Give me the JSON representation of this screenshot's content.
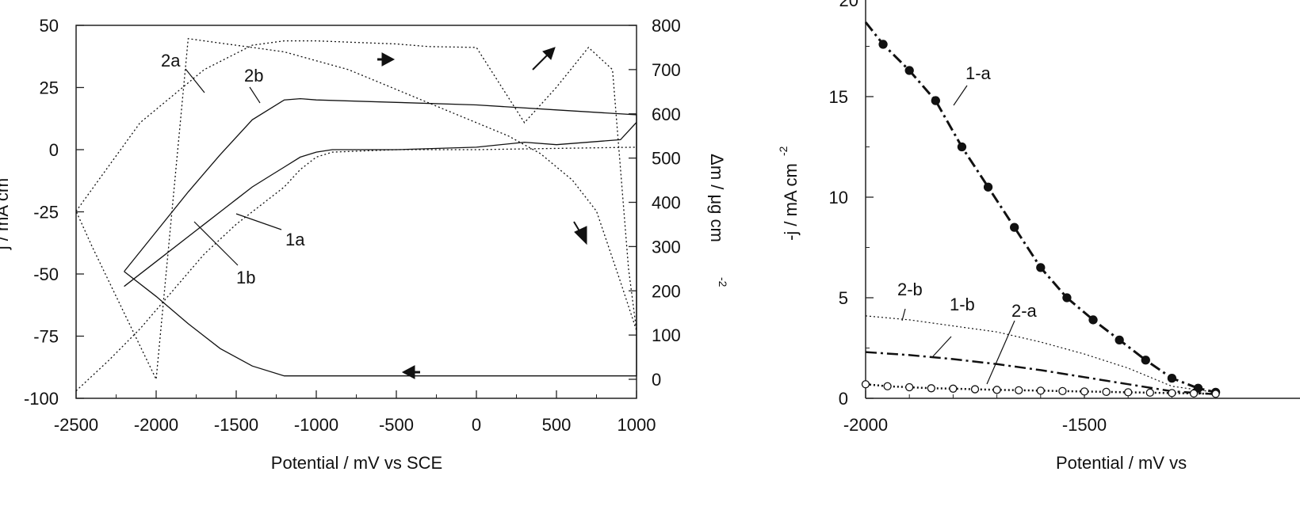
{
  "chart_data": [
    {
      "type": "line",
      "xlabel": "Potential / mV vs SCE",
      "ylabel": "j / mA cm",
      "y2label": "Δm / μg cm",
      "y2label_exp": "-2",
      "xlim": [
        -2500,
        1000
      ],
      "ylim": [
        -100,
        50
      ],
      "y2lim": [
        0,
        800
      ],
      "x_ticks": [
        "-2500",
        "-2000",
        "-1500",
        "-1000",
        "-500",
        "0",
        "500",
        "1000"
      ],
      "y_ticks": [
        "50",
        "25",
        "0",
        "-25",
        "-50",
        "-75",
        "-100"
      ],
      "y2_ticks": [
        "800",
        "700",
        "600",
        "500",
        "400",
        "300",
        "200",
        "100",
        "0"
      ],
      "grid": false,
      "annotations": [
        {
          "text": "2a"
        },
        {
          "text": "2b"
        },
        {
          "text": "1a"
        },
        {
          "text": "1b"
        }
      ],
      "series": [
        {
          "name": "1a",
          "axis": "left",
          "style": "dotted",
          "x": [
            -2500,
            -2300,
            -2100,
            -1900,
            -1700,
            -1500,
            -1400,
            -1300,
            -1200,
            -1100,
            -1000,
            -900,
            -500,
            0,
            500,
            1000
          ],
          "y": [
            -97,
            -85,
            -72,
            -57,
            -42,
            -30,
            -25,
            -20,
            -15,
            -8,
            -3,
            -1,
            0,
            0,
            0.5,
            1
          ]
        },
        {
          "name": "1b",
          "axis": "left",
          "style": "solid",
          "x": [
            -2200,
            -2000,
            -1800,
            -1600,
            -1500,
            -1400,
            -1300,
            -1200,
            -1100,
            -1000,
            -900,
            -500,
            0,
            300,
            500,
            900,
            1000
          ],
          "y": [
            -55,
            -45,
            -35,
            -25,
            -20,
            -15,
            -11,
            -7,
            -3,
            -1,
            0,
            0,
            1,
            3,
            2,
            4,
            11
          ]
        },
        {
          "name": "2a",
          "axis": "right",
          "style": "dotted",
          "x": [
            -2500,
            -2100,
            -1700,
            -1400,
            -1200,
            -1000,
            -800,
            -500,
            -300,
            0,
            300,
            500,
            700,
            850,
            950,
            1000,
            900,
            750,
            600,
            400,
            200,
            0,
            -200,
            -400,
            -600,
            -800,
            -1000,
            -1200,
            -1400,
            -1600,
            -1800,
            -2000,
            -2200,
            -2400,
            -2500
          ],
          "y": [
            380,
            580,
            700,
            755,
            765,
            765,
            762,
            758,
            752,
            750,
            580,
            660,
            750,
            700,
            250,
            110,
            220,
            380,
            450,
            510,
            550,
            580,
            610,
            640,
            670,
            700,
            720,
            740,
            750,
            760,
            770,
            0,
            150,
            300,
            380
          ]
        },
        {
          "name": "2b",
          "axis": "left",
          "style": "solid",
          "x": [
            -2200,
            -2000,
            -1800,
            -1600,
            -1400,
            -1200,
            -1100,
            -1000,
            -500,
            0,
            500,
            1000,
            1000,
            -1200,
            -1400,
            -1600,
            -1800,
            -2000,
            -2200
          ],
          "y": [
            -49,
            -33,
            -17,
            -2,
            12,
            20,
            20.5,
            20,
            19,
            18,
            16,
            14,
            -91,
            -91,
            -87,
            -80,
            -70,
            -59,
            -49
          ]
        }
      ]
    },
    {
      "type": "line",
      "xlabel": "Potential / mV vs",
      "ylabel": "-j / mA cm",
      "ylabel_exp": "-2",
      "xlim": [
        -2000,
        -1200
      ],
      "ylim": [
        0,
        20
      ],
      "x_ticks": [
        "-2000",
        "-1500"
      ],
      "y_ticks": [
        "0",
        "5",
        "10",
        "15"
      ],
      "grid": false,
      "annotations": [
        {
          "text": "1-a"
        },
        {
          "text": "2-b"
        },
        {
          "text": "1-b"
        },
        {
          "text": "2-a"
        }
      ],
      "series": [
        {
          "name": "1-a",
          "style": "dash-dot-markers-filled",
          "x": [
            -2000,
            -1960,
            -1900,
            -1840,
            -1780,
            -1720,
            -1660,
            -1600,
            -1540,
            -1480,
            -1420,
            -1360,
            -1300,
            -1240,
            -1200
          ],
          "y": [
            18.7,
            17.6,
            16.3,
            14.8,
            12.5,
            10.5,
            8.5,
            6.5,
            5.0,
            3.9,
            2.9,
            1.9,
            1.0,
            0.5,
            0.3
          ]
        },
        {
          "name": "2-b",
          "style": "dotted",
          "x": [
            -2000,
            -1900,
            -1800,
            -1700,
            -1600,
            -1500,
            -1400,
            -1300,
            -1200
          ],
          "y": [
            4.1,
            3.9,
            3.6,
            3.3,
            2.8,
            2.2,
            1.5,
            0.6,
            0.3
          ]
        },
        {
          "name": "1-b",
          "style": "dash-dot",
          "x": [
            -2000,
            -1900,
            -1800,
            -1700,
            -1600,
            -1500,
            -1400,
            -1300,
            -1200
          ],
          "y": [
            2.3,
            2.15,
            1.95,
            1.7,
            1.4,
            1.05,
            0.7,
            0.35,
            0.2
          ]
        },
        {
          "name": "2-a",
          "style": "dotted-markers-open",
          "x": [
            -2000,
            -1950,
            -1900,
            -1850,
            -1800,
            -1750,
            -1700,
            -1650,
            -1600,
            -1550,
            -1500,
            -1450,
            -1400,
            -1350,
            -1300,
            -1250,
            -1200
          ],
          "y": [
            0.7,
            0.6,
            0.55,
            0.5,
            0.48,
            0.45,
            0.42,
            0.4,
            0.38,
            0.36,
            0.34,
            0.32,
            0.3,
            0.28,
            0.26,
            0.24,
            0.22
          ]
        }
      ]
    }
  ]
}
